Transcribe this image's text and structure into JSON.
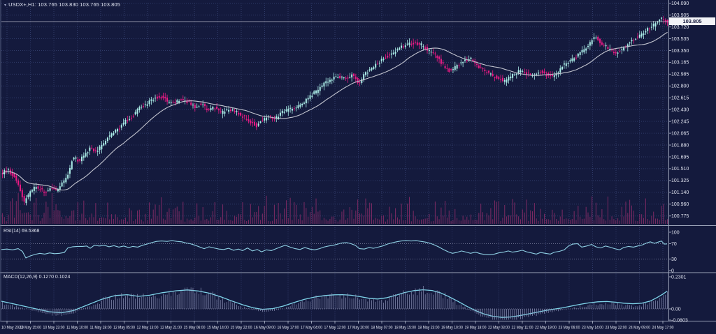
{
  "symbol": {
    "marker": "▾",
    "title": "USDX+,H1: 103.765 103.830 103.765 103.805",
    "name": "USDX+",
    "timeframe": "H1",
    "open": "103.765",
    "high": "103.830",
    "low": "103.765",
    "close": "103.805"
  },
  "main": {
    "current_price_label": "103.805"
  },
  "indicators": {
    "rsi": {
      "label": "RSI(14) 69.5368",
      "value": "69.5368",
      "axis_labels": [
        "100",
        "70",
        "30",
        "0"
      ]
    },
    "macd": {
      "label": "MACD(12,26,9) 0.1270 0.1024",
      "values": [
        "0.1270",
        "0.1024"
      ],
      "axis_labels": [
        "0.2301",
        "0.00",
        "-0.0803"
      ]
    }
  },
  "colors": {
    "background": "#141a3d",
    "grid": "#2f3a68",
    "bull_candle": "#aceee8",
    "bear_candle": "#ed1a86",
    "ma_line": "#c2c4cf",
    "volume": "#7c2a63",
    "rsi_line": "#8fd0e4",
    "macd_line": "#7ed3e8",
    "macd_histogram": "#9298bd",
    "axis_text": "#dfe2ee",
    "panel_border": "#9aa2b8",
    "level_dotted": "#8d92b0",
    "price_line": "#c9cdd9",
    "price_tag_bg": "#f2f3f7",
    "price_tag_text": "#11163a"
  },
  "chart_data": [
    {
      "type": "candlestick",
      "title": "USDX+ H1",
      "ylabel": "price",
      "legend": "none",
      "grid": "dotted",
      "current_price": 103.805,
      "candle_count": 336,
      "has_volume": true,
      "overlay": "moving average (SMA ~24)",
      "price_ticks": [
        "104.090",
        "103.905",
        "103.720",
        "103.535",
        "103.350",
        "103.165",
        "102.985",
        "102.800",
        "102.615",
        "102.430",
        "102.245",
        "102.065",
        "101.880",
        "101.695",
        "101.510",
        "101.325",
        "101.140",
        "100.960",
        "100.775"
      ],
      "time_ticks": [
        "10 May 2023",
        "10 May 15:00",
        "10 May 23:00",
        "11 May 10:00",
        "11 May 18:00",
        "12 May 05:00",
        "12 May 13:00",
        "12 May 21:00",
        "15 May 06:00",
        "15 May 14:00",
        "15 May 22:00",
        "16 May 09:00",
        "16 May 17:00",
        "17 May 04:00",
        "17 May 12:00",
        "17 May 20:00",
        "18 May 07:00",
        "18 May 15:00",
        "18 May 23:00",
        "19 May 10:00",
        "19 May 18:00",
        "22 May 03:00",
        "22 May 11:00",
        "22 May 19:00",
        "23 May 06:00",
        "23 May 14:00",
        "23 May 22:00",
        "24 May 09:00",
        "24 May 17:00"
      ],
      "price_path": [
        [
          2,
          101.42
        ],
        [
          12,
          101.5
        ],
        [
          22,
          101.38
        ],
        [
          30,
          101.18
        ],
        [
          36,
          100.99
        ],
        [
          42,
          101.1
        ],
        [
          50,
          101.22
        ],
        [
          58,
          101.2
        ],
        [
          66,
          101.14
        ],
        [
          74,
          101.22
        ],
        [
          82,
          101.18
        ],
        [
          90,
          101.28
        ],
        [
          98,
          101.4
        ],
        [
          106,
          101.7
        ],
        [
          114,
          101.63
        ],
        [
          122,
          101.72
        ],
        [
          130,
          101.83
        ],
        [
          140,
          101.78
        ],
        [
          150,
          101.92
        ],
        [
          160,
          102.05
        ],
        [
          170,
          102.12
        ],
        [
          180,
          102.25
        ],
        [
          190,
          102.32
        ],
        [
          200,
          102.45
        ],
        [
          210,
          102.52
        ],
        [
          220,
          102.6
        ],
        [
          230,
          102.64
        ],
        [
          240,
          102.58
        ],
        [
          250,
          102.52
        ],
        [
          260,
          102.6
        ],
        [
          270,
          102.55
        ],
        [
          280,
          102.47
        ],
        [
          290,
          102.53
        ],
        [
          298,
          102.42
        ],
        [
          308,
          102.47
        ],
        [
          318,
          102.38
        ],
        [
          328,
          102.43
        ],
        [
          338,
          102.4
        ],
        [
          348,
          102.33
        ],
        [
          358,
          102.26
        ],
        [
          368,
          102.18
        ],
        [
          376,
          102.26
        ],
        [
          386,
          102.32
        ],
        [
          396,
          102.3
        ],
        [
          406,
          102.4
        ],
        [
          416,
          102.44
        ],
        [
          426,
          102.47
        ],
        [
          436,
          102.55
        ],
        [
          446,
          102.65
        ],
        [
          456,
          102.74
        ],
        [
          466,
          102.85
        ],
        [
          476,
          102.92
        ],
        [
          486,
          102.95
        ],
        [
          496,
          102.92
        ],
        [
          506,
          102.98
        ],
        [
          514,
          102.84
        ],
        [
          524,
          103.0
        ],
        [
          534,
          103.08
        ],
        [
          544,
          103.18
        ],
        [
          554,
          103.26
        ],
        [
          564,
          103.32
        ],
        [
          574,
          103.4
        ],
        [
          584,
          103.45
        ],
        [
          594,
          103.47
        ],
        [
          604,
          103.44
        ],
        [
          614,
          103.36
        ],
        [
          624,
          103.28
        ],
        [
          634,
          103.14
        ],
        [
          644,
          103.04
        ],
        [
          654,
          103.1
        ],
        [
          664,
          103.2
        ],
        [
          674,
          103.23
        ],
        [
          684,
          103.1
        ],
        [
          694,
          103.04
        ],
        [
          704,
          102.97
        ],
        [
          714,
          102.92
        ],
        [
          724,
          102.87
        ],
        [
          734,
          102.97
        ],
        [
          744,
          103.04
        ],
        [
          754,
          103.0
        ],
        [
          764,
          102.96
        ],
        [
          774,
          103.02
        ],
        [
          784,
          102.97
        ],
        [
          794,
          102.94
        ],
        [
          804,
          103.1
        ],
        [
          814,
          103.17
        ],
        [
          824,
          103.24
        ],
        [
          834,
          103.34
        ],
        [
          844,
          103.45
        ],
        [
          852,
          103.58
        ],
        [
          860,
          103.47
        ],
        [
          870,
          103.4
        ],
        [
          880,
          103.32
        ],
        [
          890,
          103.36
        ],
        [
          900,
          103.46
        ],
        [
          910,
          103.54
        ],
        [
          920,
          103.63
        ],
        [
          930,
          103.7
        ],
        [
          940,
          103.78
        ],
        [
          948,
          103.86
        ],
        [
          954,
          103.805
        ]
      ]
    },
    {
      "type": "line",
      "name": "RSI(14)",
      "current": 69.5368,
      "range": [
        0,
        100
      ],
      "levels": [
        70,
        30
      ],
      "points": [
        [
          2,
          55
        ],
        [
          10,
          56
        ],
        [
          18,
          54
        ],
        [
          26,
          57
        ],
        [
          32,
          50
        ],
        [
          37,
          33
        ],
        [
          43,
          38
        ],
        [
          50,
          42
        ],
        [
          57,
          45
        ],
        [
          64,
          43
        ],
        [
          71,
          46
        ],
        [
          78,
          44
        ],
        [
          85,
          45
        ],
        [
          92,
          47
        ],
        [
          97,
          59
        ],
        [
          104,
          62
        ],
        [
          111,
          63
        ],
        [
          118,
          63
        ],
        [
          124,
          64
        ],
        [
          129,
          58
        ],
        [
          135,
          66
        ],
        [
          142,
          64
        ],
        [
          149,
          66
        ],
        [
          156,
          62
        ],
        [
          163,
          65
        ],
        [
          170,
          61
        ],
        [
          177,
          64
        ],
        [
          184,
          60
        ],
        [
          190,
          63
        ],
        [
          197,
          61
        ],
        [
          204,
          66
        ],
        [
          210,
          69
        ],
        [
          217,
          73
        ],
        [
          224,
          76
        ],
        [
          231,
          77
        ],
        [
          239,
          76
        ],
        [
          246,
          78
        ],
        [
          253,
          76
        ],
        [
          260,
          75
        ],
        [
          266,
          72
        ],
        [
          272,
          70
        ],
        [
          279,
          66
        ],
        [
          286,
          61
        ],
        [
          292,
          57
        ],
        [
          299,
          62
        ],
        [
          306,
          59
        ],
        [
          313,
          56
        ],
        [
          320,
          55
        ],
        [
          327,
          58
        ],
        [
          334,
          53
        ],
        [
          341,
          56
        ],
        [
          347,
          52
        ],
        [
          354,
          59
        ],
        [
          361,
          51
        ],
        [
          368,
          55
        ],
        [
          374,
          49
        ],
        [
          381,
          54
        ],
        [
          388,
          52
        ],
        [
          395,
          57
        ],
        [
          402,
          62
        ],
        [
          408,
          66
        ],
        [
          415,
          61
        ],
        [
          422,
          57
        ],
        [
          429,
          55
        ],
        [
          436,
          60
        ],
        [
          443,
          56
        ],
        [
          450,
          54
        ],
        [
          457,
          57
        ],
        [
          463,
          61
        ],
        [
          470,
          64
        ],
        [
          477,
          66
        ],
        [
          483,
          69
        ],
        [
          489,
          72
        ],
        [
          496,
          73
        ],
        [
          502,
          70
        ],
        [
          508,
          66
        ],
        [
          514,
          57
        ],
        [
          521,
          56
        ],
        [
          528,
          60
        ],
        [
          534,
          58
        ],
        [
          541,
          61
        ],
        [
          547,
          64
        ],
        [
          554,
          69
        ],
        [
          560,
          72
        ],
        [
          567,
          75
        ],
        [
          574,
          77
        ],
        [
          581,
          78
        ],
        [
          588,
          77
        ],
        [
          595,
          78
        ],
        [
          602,
          76
        ],
        [
          609,
          74
        ],
        [
          615,
          71
        ],
        [
          621,
          67
        ],
        [
          628,
          61
        ],
        [
          634,
          55
        ],
        [
          641,
          49
        ],
        [
          647,
          45
        ],
        [
          653,
          47
        ],
        [
          660,
          51
        ],
        [
          667,
          48
        ],
        [
          673,
          45
        ],
        [
          680,
          48
        ],
        [
          687,
          44
        ],
        [
          693,
          42
        ],
        [
          700,
          41
        ],
        [
          707,
          43
        ],
        [
          713,
          46
        ],
        [
          720,
          48
        ],
        [
          727,
          51
        ],
        [
          733,
          48
        ],
        [
          740,
          50
        ],
        [
          747,
          53
        ],
        [
          753,
          49
        ],
        [
          760,
          46
        ],
        [
          767,
          43
        ],
        [
          773,
          47
        ],
        [
          780,
          45
        ],
        [
          787,
          43
        ],
        [
          793,
          48
        ],
        [
          800,
          50
        ],
        [
          807,
          54
        ],
        [
          813,
          64
        ],
        [
          819,
          69
        ],
        [
          826,
          70
        ],
        [
          832,
          61
        ],
        [
          839,
          64
        ],
        [
          846,
          68
        ],
        [
          852,
          62
        ],
        [
          859,
          59
        ],
        [
          866,
          64
        ],
        [
          872,
          61
        ],
        [
          879,
          57
        ],
        [
          886,
          54
        ],
        [
          892,
          60
        ],
        [
          899,
          63
        ],
        [
          906,
          61
        ],
        [
          912,
          64
        ],
        [
          919,
          67
        ],
        [
          925,
          72
        ],
        [
          930,
          75
        ],
        [
          936,
          71
        ],
        [
          941,
          74
        ],
        [
          946,
          77
        ],
        [
          950,
          69
        ],
        [
          954,
          69.5
        ]
      ]
    },
    {
      "type": "line+histogram",
      "name": "MACD(12,26,9)",
      "current": [
        0.127,
        0.1024
      ],
      "range": [
        -0.0803,
        0.2301
      ],
      "points": [
        [
          2,
          0.055
        ],
        [
          25,
          0.03
        ],
        [
          50,
          0.002
        ],
        [
          70,
          -0.02
        ],
        [
          88,
          -0.028
        ],
        [
          105,
          -0.012
        ],
        [
          125,
          0.028
        ],
        [
          145,
          0.068
        ],
        [
          165,
          0.096
        ],
        [
          182,
          0.102
        ],
        [
          198,
          0.09
        ],
        [
          214,
          0.098
        ],
        [
          232,
          0.116
        ],
        [
          252,
          0.13
        ],
        [
          268,
          0.136
        ],
        [
          284,
          0.128
        ],
        [
          300,
          0.112
        ],
        [
          316,
          0.086
        ],
        [
          332,
          0.056
        ],
        [
          348,
          0.028
        ],
        [
          362,
          0.008
        ],
        [
          375,
          -0.003
        ],
        [
          390,
          0.002
        ],
        [
          405,
          0.02
        ],
        [
          420,
          0.045
        ],
        [
          435,
          0.068
        ],
        [
          450,
          0.085
        ],
        [
          465,
          0.096
        ],
        [
          478,
          0.101
        ],
        [
          490,
          0.102
        ],
        [
          502,
          0.098
        ],
        [
          515,
          0.088
        ],
        [
          528,
          0.076
        ],
        [
          540,
          0.071
        ],
        [
          552,
          0.079
        ],
        [
          565,
          0.096
        ],
        [
          578,
          0.116
        ],
        [
          592,
          0.131
        ],
        [
          605,
          0.137
        ],
        [
          618,
          0.132
        ],
        [
          630,
          0.115
        ],
        [
          642,
          0.088
        ],
        [
          655,
          0.054
        ],
        [
          668,
          0.018
        ],
        [
          680,
          -0.012
        ],
        [
          692,
          -0.036
        ],
        [
          705,
          -0.053
        ],
        [
          718,
          -0.061
        ],
        [
          730,
          -0.058
        ],
        [
          742,
          -0.049
        ],
        [
          755,
          -0.037
        ],
        [
          768,
          -0.024
        ],
        [
          780,
          -0.012
        ],
        [
          792,
          -0.002
        ],
        [
          805,
          0.008
        ],
        [
          818,
          0.021
        ],
        [
          830,
          0.033
        ],
        [
          842,
          0.043
        ],
        [
          855,
          0.051
        ],
        [
          868,
          0.053
        ],
        [
          880,
          0.048
        ],
        [
          892,
          0.041
        ],
        [
          905,
          0.037
        ],
        [
          918,
          0.041
        ],
        [
          930,
          0.056
        ],
        [
          940,
          0.082
        ],
        [
          948,
          0.106
        ],
        [
          954,
          0.127
        ]
      ]
    }
  ]
}
